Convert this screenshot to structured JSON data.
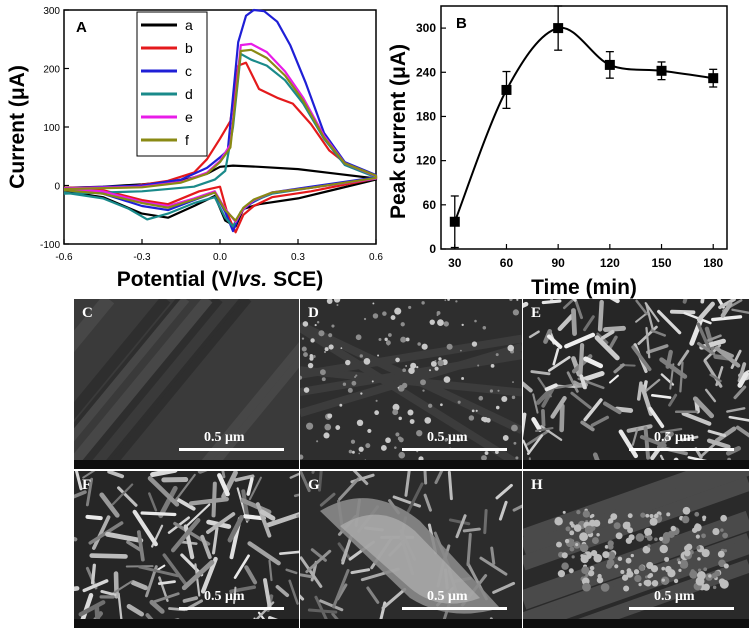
{
  "colors": {
    "background": "#ffffff",
    "axis": "#000000",
    "sem_light": "#9a9a9a",
    "sem_dark": "#222222"
  },
  "chart_data": [
    {
      "panel_label": "A",
      "type": "line",
      "xlabel_parts": [
        "Potential (V/",
        "vs.",
        " SCE)"
      ],
      "ylabel": "Current (μA)",
      "xlim": [
        -0.6,
        0.6
      ],
      "ylim": [
        -100,
        300
      ],
      "xticks": [
        "-0.6",
        "-0.3",
        "0.0",
        "0.3",
        "0.6"
      ],
      "yticks": [
        "-100",
        "0",
        "100",
        "200",
        "300"
      ],
      "legend_position": "top-center",
      "series": [
        {
          "name": "a",
          "color": "#000000",
          "forward": [
            [
              -0.6,
              -10
            ],
            [
              -0.45,
              -20
            ],
            [
              -0.3,
              -48
            ],
            [
              -0.2,
              -55
            ],
            [
              -0.1,
              -35
            ],
            [
              -0.02,
              -18
            ],
            [
              0.02,
              -60
            ],
            [
              0.06,
              -70
            ],
            [
              0.09,
              -40
            ],
            [
              0.15,
              -32
            ],
            [
              0.3,
              -22
            ],
            [
              0.45,
              -6
            ],
            [
              0.6,
              10
            ]
          ],
          "reverse": [
            [
              0.6,
              12
            ],
            [
              0.45,
              20
            ],
            [
              0.3,
              28
            ],
            [
              0.15,
              32
            ],
            [
              0.05,
              34
            ],
            [
              0,
              32
            ],
            [
              -0.05,
              20
            ],
            [
              -0.15,
              8
            ],
            [
              -0.3,
              2
            ],
            [
              -0.45,
              -2
            ],
            [
              -0.6,
              -4
            ]
          ]
        },
        {
          "name": "b",
          "color": "#e41a1c",
          "forward": [
            [
              -0.6,
              -6
            ],
            [
              -0.45,
              -8
            ],
            [
              -0.3,
              -25
            ],
            [
              -0.2,
              -32
            ],
            [
              -0.08,
              -10
            ],
            [
              0,
              -2
            ],
            [
              0.03,
              -50
            ],
            [
              0.06,
              -80
            ],
            [
              0.09,
              -50
            ],
            [
              0.13,
              -35
            ],
            [
              0.2,
              -20
            ],
            [
              0.35,
              -10
            ],
            [
              0.6,
              12
            ]
          ],
          "reverse": [
            [
              0.6,
              15
            ],
            [
              0.5,
              32
            ],
            [
              0.42,
              60
            ],
            [
              0.35,
              105
            ],
            [
              0.28,
              140
            ],
            [
              0.22,
              150
            ],
            [
              0.15,
              165
            ],
            [
              0.1,
              210
            ],
            [
              0.07,
              205
            ],
            [
              0.04,
              110
            ],
            [
              0.0,
              80
            ],
            [
              -0.05,
              45
            ],
            [
              -0.1,
              22
            ],
            [
              -0.2,
              8
            ],
            [
              -0.35,
              -2
            ],
            [
              -0.6,
              -4
            ]
          ]
        },
        {
          "name": "c",
          "color": "#1f1fd6",
          "forward": [
            [
              -0.6,
              -8
            ],
            [
              -0.45,
              -14
            ],
            [
              -0.3,
              -35
            ],
            [
              -0.2,
              -42
            ],
            [
              -0.1,
              -25
            ],
            [
              -0.02,
              -12
            ],
            [
              0.02,
              -45
            ],
            [
              0.05,
              -78
            ],
            [
              0.08,
              -45
            ],
            [
              0.12,
              -30
            ],
            [
              0.2,
              -12
            ],
            [
              0.35,
              -2
            ],
            [
              0.6,
              14
            ]
          ],
          "reverse": [
            [
              0.6,
              18
            ],
            [
              0.48,
              40
            ],
            [
              0.4,
              90
            ],
            [
              0.33,
              175
            ],
            [
              0.27,
              240
            ],
            [
              0.22,
              280
            ],
            [
              0.17,
              298
            ],
            [
              0.13,
              300
            ],
            [
              0.1,
              290
            ],
            [
              0.07,
              245
            ],
            [
              0.03,
              60
            ],
            [
              0.0,
              48
            ],
            [
              -0.05,
              30
            ],
            [
              -0.15,
              10
            ],
            [
              -0.3,
              0
            ],
            [
              -0.6,
              -5
            ]
          ]
        },
        {
          "name": "d",
          "color": "#1a8a8a",
          "forward": [
            [
              -0.6,
              -12
            ],
            [
              -0.45,
              -22
            ],
            [
              -0.35,
              -40
            ],
            [
              -0.28,
              -58
            ],
            [
              -0.2,
              -48
            ],
            [
              -0.1,
              -30
            ],
            [
              -0.02,
              -20
            ],
            [
              0.02,
              -55
            ],
            [
              0.05,
              -70
            ],
            [
              0.08,
              -45
            ],
            [
              0.12,
              -28
            ],
            [
              0.2,
              -14
            ],
            [
              0.35,
              -4
            ],
            [
              0.6,
              12
            ]
          ],
          "reverse": [
            [
              0.6,
              14
            ],
            [
              0.48,
              35
            ],
            [
              0.4,
              80
            ],
            [
              0.32,
              140
            ],
            [
              0.25,
              180
            ],
            [
              0.18,
              205
            ],
            [
              0.12,
              215
            ],
            [
              0.08,
              225
            ],
            [
              0.05,
              100
            ],
            [
              0.02,
              25
            ],
            [
              -0.02,
              10
            ],
            [
              -0.1,
              -2
            ],
            [
              -0.3,
              -10
            ],
            [
              -0.6,
              -14
            ]
          ]
        },
        {
          "name": "e",
          "color": "#e81ce8",
          "forward": [
            [
              -0.6,
              -6
            ],
            [
              -0.45,
              -10
            ],
            [
              -0.3,
              -28
            ],
            [
              -0.2,
              -35
            ],
            [
              -0.1,
              -22
            ],
            [
              -0.02,
              -10
            ],
            [
              0.02,
              -40
            ],
            [
              0.06,
              -62
            ],
            [
              0.09,
              -40
            ],
            [
              0.13,
              -25
            ],
            [
              0.2,
              -12
            ],
            [
              0.35,
              -4
            ],
            [
              0.6,
              12
            ]
          ],
          "reverse": [
            [
              0.6,
              16
            ],
            [
              0.48,
              38
            ],
            [
              0.4,
              85
            ],
            [
              0.32,
              150
            ],
            [
              0.25,
              195
            ],
            [
              0.18,
              228
            ],
            [
              0.12,
              242
            ],
            [
              0.08,
              240
            ],
            [
              0.04,
              70
            ],
            [
              0.0,
              42
            ],
            [
              -0.05,
              22
            ],
            [
              -0.15,
              6
            ],
            [
              -0.3,
              -2
            ],
            [
              -0.6,
              -5
            ]
          ]
        },
        {
          "name": "f",
          "color": "#8a8a14",
          "forward": [
            [
              -0.6,
              -8
            ],
            [
              -0.45,
              -14
            ],
            [
              -0.3,
              -30
            ],
            [
              -0.2,
              -38
            ],
            [
              -0.1,
              -24
            ],
            [
              -0.02,
              -12
            ],
            [
              0.02,
              -42
            ],
            [
              0.06,
              -60
            ],
            [
              0.09,
              -38
            ],
            [
              0.13,
              -24
            ],
            [
              0.2,
              -12
            ],
            [
              0.35,
              -4
            ],
            [
              0.6,
              13
            ]
          ],
          "reverse": [
            [
              0.6,
              17
            ],
            [
              0.48,
              38
            ],
            [
              0.4,
              82
            ],
            [
              0.32,
              145
            ],
            [
              0.25,
              188
            ],
            [
              0.18,
              218
            ],
            [
              0.12,
              232
            ],
            [
              0.08,
              230
            ],
            [
              0.04,
              65
            ],
            [
              0.0,
              40
            ],
            [
              -0.05,
              20
            ],
            [
              -0.15,
              5
            ],
            [
              -0.3,
              -3
            ],
            [
              -0.6,
              -6
            ]
          ]
        }
      ]
    },
    {
      "panel_label": "B",
      "type": "line",
      "xlabel": "Time (min)",
      "ylabel": "Peak current (μA)",
      "xlim": [
        22,
        188
      ],
      "ylim": [
        0,
        330
      ],
      "xticks": [
        "30",
        "60",
        "90",
        "120",
        "150",
        "180"
      ],
      "yticks": [
        "0",
        "60",
        "120",
        "180",
        "240",
        "300"
      ],
      "x": [
        30,
        60,
        90,
        120,
        150,
        180
      ],
      "y": [
        37,
        216,
        300,
        250,
        242,
        232
      ],
      "yerr": [
        35,
        25,
        30,
        18,
        12,
        12
      ]
    }
  ],
  "sem_panels": [
    {
      "letter": "C",
      "scale": "0.5 μm",
      "texture": "smooth"
    },
    {
      "letter": "D",
      "scale": "0.5 μm",
      "texture": "particles"
    },
    {
      "letter": "E",
      "scale": "0.5 μm",
      "texture": "needles"
    },
    {
      "letter": "F",
      "scale": "0.5 μm",
      "texture": "rods"
    },
    {
      "letter": "G",
      "scale": "0.5 μm",
      "texture": "flakes"
    },
    {
      "letter": "H",
      "scale": "0.5 μm",
      "texture": "clusters"
    }
  ]
}
